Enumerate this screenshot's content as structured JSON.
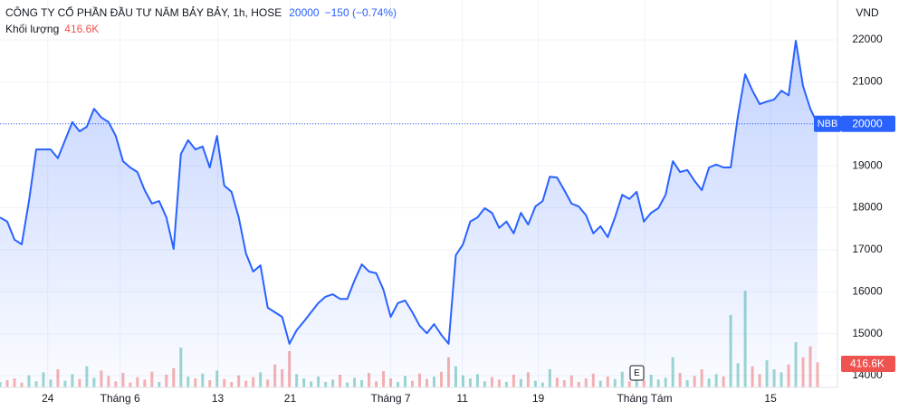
{
  "chart_data": {
    "type": "line",
    "title": "CÔNG TY CỔ PHẦN ĐẦU TƯ NĂM BẢY BẢY, 1h, HOSE",
    "change_label": "−150 (−0.74%)",
    "y_axis_label": "VND",
    "event_marker": "E",
    "xlim": [
      0,
      115.75
    ],
    "xticks": [
      {
        "value": 6.6,
        "label": "24"
      },
      {
        "value": 16.6,
        "label": "Tháng 6"
      },
      {
        "value": 30.1,
        "label": "13"
      },
      {
        "value": 40.1,
        "label": "21"
      },
      {
        "value": 54,
        "label": "Tháng 7"
      },
      {
        "value": 63.9,
        "label": "11"
      },
      {
        "value": 74.4,
        "label": "19"
      },
      {
        "value": 89.1,
        "label": "Tháng Tám"
      },
      {
        "value": 106.5,
        "label": "15"
      }
    ],
    "ylim": [
      13720,
      22950
    ],
    "yticks": [
      14000,
      15000,
      16000,
      17000,
      18000,
      19000,
      20000,
      21000,
      22000
    ],
    "y2lim": [
      0,
      6420000
    ],
    "grid": true,
    "series": [
      {
        "name": "NBB",
        "color": "#2962ff",
        "values": [
          17770,
          17670,
          17240,
          17130,
          18160,
          19390,
          19390,
          19390,
          19180,
          19610,
          20040,
          19820,
          19930,
          20360,
          20150,
          20040,
          19710,
          19110,
          18960,
          18850,
          18420,
          18100,
          18160,
          17770,
          17020,
          19280,
          19610,
          19390,
          19460,
          18960,
          19710,
          18530,
          18380,
          17770,
          16910,
          16480,
          16630,
          15620,
          15510,
          15400,
          14760,
          15080,
          15290,
          15510,
          15730,
          15880,
          15940,
          15830,
          15830,
          16270,
          16650,
          16480,
          16440,
          16050,
          15400,
          15730,
          15790,
          15510,
          15190,
          15010,
          15230,
          14970,
          14760,
          16870,
          17130,
          17670,
          17770,
          17990,
          17880,
          17520,
          17670,
          17390,
          17880,
          17600,
          18030,
          18160,
          18740,
          18720,
          18420,
          18100,
          18030,
          17820,
          17390,
          17560,
          17300,
          17770,
          18310,
          18210,
          18380,
          17670,
          17880,
          17990,
          18310,
          19110,
          18850,
          18900,
          18640,
          18420,
          18960,
          19030,
          18960,
          18960,
          20190,
          21180,
          20790,
          20470,
          20530,
          20580,
          20790,
          20680,
          21980,
          20900,
          20360,
          20000
        ]
      },
      {
        "name": "Khối lượng",
        "axis": "y2",
        "up_color": "#26a69a",
        "down_color": "#ef5350",
        "last_label": "416.6K",
        "values": [
          90000,
          120000,
          150000,
          80000,
          200000,
          100000,
          250000,
          130000,
          300000,
          110000,
          220000,
          140000,
          350000,
          160000,
          280000,
          190000,
          100000,
          240000,
          80000,
          170000,
          130000,
          260000,
          90000,
          210000,
          320000,
          660000,
          180000,
          150000,
          230000,
          120000,
          280000,
          140000,
          90000,
          200000,
          110000,
          170000,
          250000,
          130000,
          380000,
          300000,
          600000,
          220000,
          150000,
          100000,
          180000,
          90000,
          130000,
          210000,
          80000,
          160000,
          120000,
          240000,
          100000,
          270000,
          150000,
          90000,
          190000,
          110000,
          230000,
          140000,
          180000,
          260000,
          500000,
          350000,
          200000,
          150000,
          220000,
          100000,
          170000,
          130000,
          90000,
          210000,
          140000,
          250000,
          110000,
          80000,
          300000,
          160000,
          120000,
          200000,
          90000,
          150000,
          230000,
          110000,
          180000,
          140000,
          260000,
          100000,
          170000,
          120000,
          210000,
          130000,
          160000,
          500000,
          240000,
          120000,
          190000,
          300000,
          150000,
          220000,
          180000,
          1200000,
          400000,
          1600000,
          350000,
          220000,
          450000,
          300000,
          250000,
          380000,
          750000,
          500000,
          680000,
          416600
        ]
      }
    ]
  }
}
